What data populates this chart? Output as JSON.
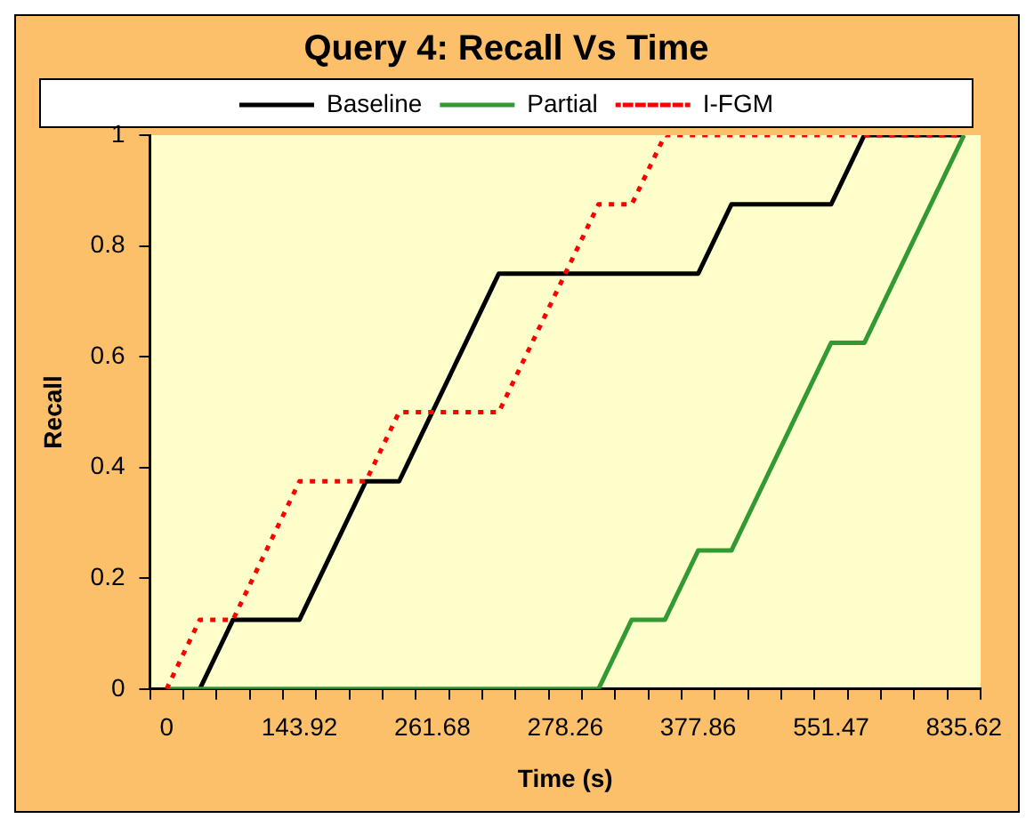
{
  "chart_data": {
    "type": "line",
    "title": "Query 4: Recall Vs Time",
    "xlabel": "Time (s)",
    "ylabel": "Recall",
    "categories": [
      "0",
      null,
      null,
      null,
      "143.92",
      null,
      null,
      null,
      "261.68",
      null,
      null,
      null,
      "278.26",
      null,
      null,
      null,
      "377.86",
      null,
      null,
      null,
      "551.47",
      null,
      null,
      null,
      "835.62"
    ],
    "series": [
      {
        "name": "Baseline",
        "color": "#000000",
        "line_style": "solid",
        "values": [
          null,
          0,
          0.125,
          0.125,
          0.125,
          0.25,
          0.375,
          0.375,
          0.5,
          0.625,
          0.75,
          0.75,
          0.75,
          0.75,
          0.75,
          0.75,
          0.75,
          0.875,
          0.875,
          0.875,
          0.875,
          1,
          1,
          1,
          1
        ]
      },
      {
        "name": "Partial",
        "color": "#339933",
        "line_style": "solid",
        "values": [
          0,
          0,
          0,
          0,
          0,
          0,
          0,
          0,
          0,
          0,
          0,
          0,
          0,
          0,
          0.125,
          0.125,
          0.25,
          0.25,
          0.375,
          0.5,
          0.625,
          0.625,
          0.75,
          0.875,
          1
        ]
      },
      {
        "name": "I-FGM",
        "color": "#ff0000",
        "line_style": "dotted",
        "values": [
          0,
          0.125,
          0.125,
          0.25,
          0.375,
          0.375,
          0.375,
          0.5,
          0.5,
          0.5,
          0.5,
          0.625,
          0.75,
          0.875,
          0.875,
          1,
          1,
          1,
          1,
          1,
          1,
          1,
          1,
          1,
          1
        ]
      }
    ],
    "ylim": [
      0,
      1
    ],
    "yticks": [
      0,
      0.2,
      0.4,
      0.6,
      0.8,
      1
    ],
    "grid": false,
    "legend": "top",
    "marker": "none"
  }
}
